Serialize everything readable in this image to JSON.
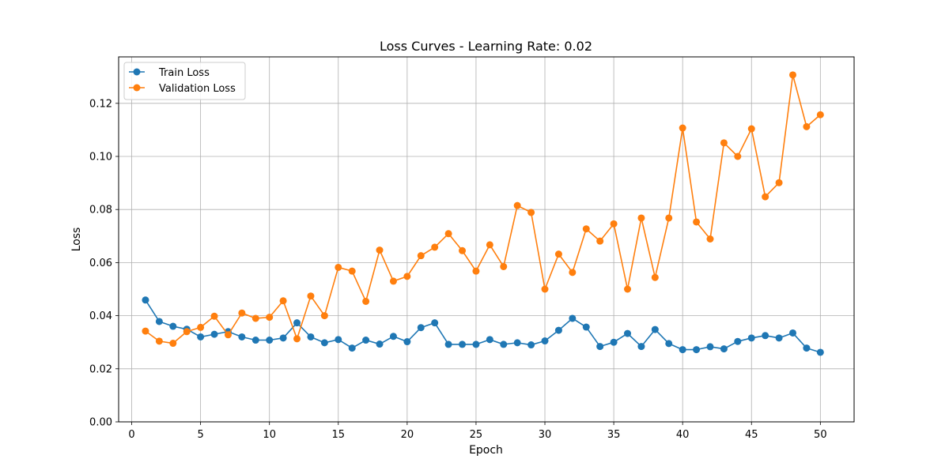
{
  "chart_data": {
    "type": "line",
    "title": "Loss Curves - Learning Rate: 0.02",
    "xlabel": "Epoch",
    "ylabel": "Loss",
    "xlim": [
      -0.95,
      52.45
    ],
    "ylim": [
      0,
      0.1375
    ],
    "x_ticks": [
      0,
      5,
      10,
      15,
      20,
      25,
      30,
      35,
      40,
      45,
      50
    ],
    "x_tick_labels": [
      "0",
      "5",
      "10",
      "15",
      "20",
      "25",
      "30",
      "35",
      "40",
      "45",
      "50"
    ],
    "y_ticks": [
      0,
      0.02,
      0.04,
      0.06,
      0.08,
      0.1,
      0.12
    ],
    "y_tick_labels": [
      "0.00",
      "0.02",
      "0.04",
      "0.06",
      "0.08",
      "0.10",
      "0.12"
    ],
    "grid": true,
    "legend_position": "upper-left",
    "x": [
      1,
      2,
      3,
      4,
      5,
      6,
      7,
      8,
      9,
      10,
      11,
      12,
      13,
      14,
      15,
      16,
      17,
      18,
      19,
      20,
      21,
      22,
      23,
      24,
      25,
      26,
      27,
      28,
      29,
      30,
      31,
      32,
      33,
      34,
      35,
      36,
      37,
      38,
      39,
      40,
      41,
      42,
      43,
      44,
      45,
      46,
      47,
      48,
      49,
      50
    ],
    "series": [
      {
        "name": "Train Loss",
        "color": "#1f77b4",
        "values": [
          0.0459,
          0.0378,
          0.036,
          0.0349,
          0.032,
          0.033,
          0.034,
          0.032,
          0.0308,
          0.0308,
          0.0316,
          0.0373,
          0.032,
          0.0298,
          0.031,
          0.0278,
          0.0308,
          0.0293,
          0.0322,
          0.0302,
          0.0355,
          0.0373,
          0.0292,
          0.0292,
          0.0292,
          0.031,
          0.0292,
          0.0298,
          0.029,
          0.0305,
          0.0345,
          0.039,
          0.0357,
          0.0284,
          0.03,
          0.0333,
          0.0284,
          0.0348,
          0.0295,
          0.0272,
          0.0272,
          0.0283,
          0.0275,
          0.0303,
          0.0316,
          0.0325,
          0.0316,
          0.0335,
          0.0278,
          0.0262
        ]
      },
      {
        "name": "Validation Loss",
        "color": "#ff7f0e",
        "values": [
          0.0342,
          0.0304,
          0.0296,
          0.034,
          0.0356,
          0.0398,
          0.0328,
          0.041,
          0.039,
          0.0394,
          0.0456,
          0.0313,
          0.0474,
          0.04,
          0.0582,
          0.0568,
          0.0454,
          0.0647,
          0.053,
          0.0548,
          0.0626,
          0.0658,
          0.0709,
          0.0645,
          0.0568,
          0.0667,
          0.0585,
          0.0815,
          0.0789,
          0.05,
          0.0632,
          0.0563,
          0.0727,
          0.0681,
          0.0746,
          0.05,
          0.0768,
          0.0544,
          0.0768,
          0.1107,
          0.0753,
          0.0689,
          0.1051,
          0.1,
          0.1104,
          0.0848,
          0.0901,
          0.1307,
          0.1112,
          0.1157
        ]
      }
    ]
  }
}
